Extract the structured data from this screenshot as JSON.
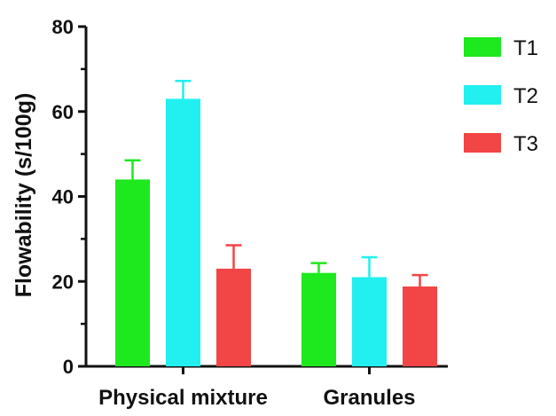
{
  "chart_data": {
    "type": "bar",
    "title": "",
    "xlabel": "",
    "ylabel": "Flowability (s/100g)",
    "ylim": [
      0,
      80
    ],
    "yticks": [
      0,
      20,
      40,
      60,
      80
    ],
    "categories": [
      "Physical mixture",
      "Granules"
    ],
    "series": [
      {
        "name": "T1",
        "color": "#1ee81e",
        "errorbar_color": "#1ee81e",
        "values": [
          44,
          22
        ],
        "errors": [
          4.5,
          2.3
        ]
      },
      {
        "name": "T2",
        "color": "#22efef",
        "errorbar_color": "#22efef",
        "values": [
          63,
          21
        ],
        "errors": [
          4.2,
          4.7
        ]
      },
      {
        "name": "T3",
        "color": "#f24545",
        "errorbar_color": "#f24545",
        "values": [
          23,
          18.8
        ],
        "errors": [
          5.5,
          2.7
        ]
      }
    ],
    "legend_position": "top-right",
    "grid": false,
    "error_bars": "upper"
  }
}
